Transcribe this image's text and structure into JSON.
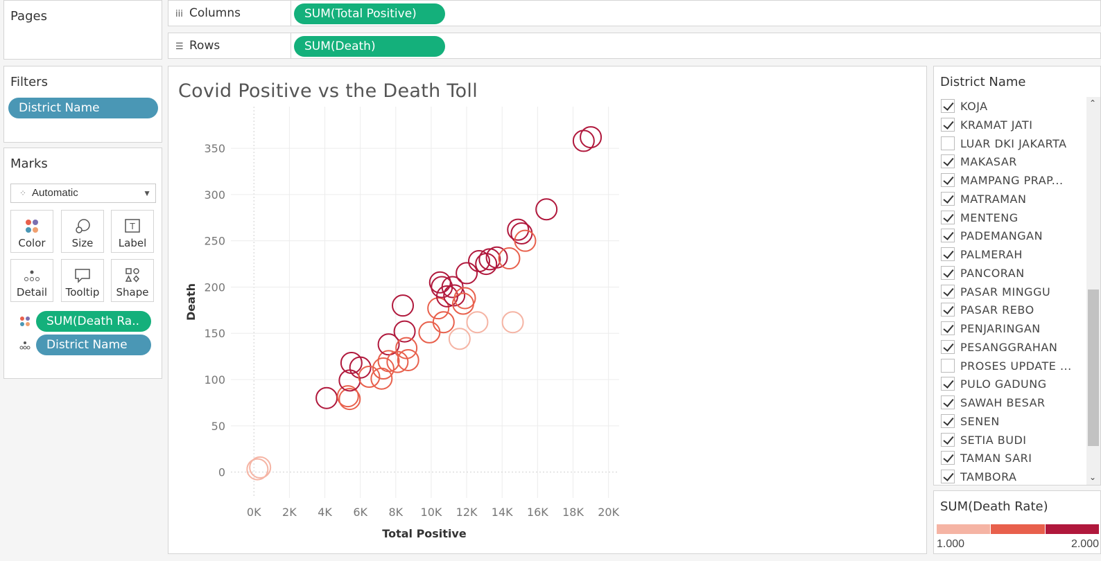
{
  "pages": {
    "title": "Pages"
  },
  "shelves": {
    "columns_label": "Columns",
    "columns_pill": "SUM(Total Positive)",
    "rows_label": "Rows",
    "rows_pill": "SUM(Death)"
  },
  "filters": {
    "title": "Filters",
    "pill": "District Name"
  },
  "marks": {
    "title": "Marks",
    "type": "Automatic",
    "buttons": [
      "Color",
      "Size",
      "Label",
      "Detail",
      "Tooltip",
      "Shape"
    ],
    "pills": [
      "SUM(Death Ra..",
      "District Name"
    ]
  },
  "district_legend": {
    "title": "District Name",
    "items": [
      {
        "label": "KOJA",
        "checked": true
      },
      {
        "label": "KRAMAT JATI",
        "checked": true
      },
      {
        "label": "LUAR DKI JAKARTA",
        "checked": false
      },
      {
        "label": "MAKASAR",
        "checked": true
      },
      {
        "label": "MAMPANG PRAP...",
        "checked": true
      },
      {
        "label": "MATRAMAN",
        "checked": true
      },
      {
        "label": "MENTENG",
        "checked": true
      },
      {
        "label": "PADEMANGAN",
        "checked": true
      },
      {
        "label": "PALMERAH",
        "checked": true
      },
      {
        "label": "PANCORAN",
        "checked": true
      },
      {
        "label": "PASAR MINGGU",
        "checked": true
      },
      {
        "label": "PASAR REBO",
        "checked": true
      },
      {
        "label": "PENJARINGAN",
        "checked": true
      },
      {
        "label": "PESANGGRAHAN",
        "checked": true
      },
      {
        "label": "PROSES UPDATE ...",
        "checked": false
      },
      {
        "label": "PULO GADUNG",
        "checked": true
      },
      {
        "label": "SAWAH BESAR",
        "checked": true
      },
      {
        "label": "SENEN",
        "checked": true
      },
      {
        "label": "SETIA BUDI",
        "checked": true
      },
      {
        "label": "TAMAN SARI",
        "checked": true
      },
      {
        "label": "TAMBORA",
        "checked": true
      }
    ]
  },
  "color_legend": {
    "title": "SUM(Death Rate)",
    "min_label": "1.000",
    "max_label": "2.000",
    "colors": [
      "#f5b4a4",
      "#e8604c",
      "#b0183c"
    ]
  },
  "chart_data": {
    "type": "scatter",
    "title": "Covid Positive vs the Death Toll",
    "xlabel": "Total Positive",
    "ylabel": "Death",
    "xlim": [
      -1300,
      20600
    ],
    "ylim": [
      -28,
      395
    ],
    "xticks": [
      0,
      2000,
      4000,
      6000,
      8000,
      10000,
      12000,
      14000,
      16000,
      18000,
      20000
    ],
    "xtick_labels": [
      "0K",
      "2K",
      "4K",
      "6K",
      "8K",
      "10K",
      "12K",
      "14K",
      "16K",
      "18K",
      "20K"
    ],
    "yticks": [
      0,
      50,
      100,
      150,
      200,
      250,
      300,
      350
    ],
    "ytick_labels": [
      "0",
      "50",
      "100",
      "150",
      "200",
      "250",
      "300",
      "350"
    ],
    "color_scale": {
      "min": 1.0,
      "max": 2.0,
      "colors": [
        "#f5b4a4",
        "#e8604c",
        "#b0183c"
      ]
    },
    "points": [
      {
        "x": 200,
        "y": 3,
        "rate": 1.1
      },
      {
        "x": 350,
        "y": 5,
        "rate": 1.15
      },
      {
        "x": 4100,
        "y": 80,
        "rate": 1.95
      },
      {
        "x": 5400,
        "y": 79,
        "rate": 1.5
      },
      {
        "x": 5300,
        "y": 82,
        "rate": 1.55
      },
      {
        "x": 5400,
        "y": 99,
        "rate": 1.85
      },
      {
        "x": 5500,
        "y": 118,
        "rate": 1.95
      },
      {
        "x": 6000,
        "y": 113,
        "rate": 1.9
      },
      {
        "x": 6500,
        "y": 103,
        "rate": 1.6
      },
      {
        "x": 7200,
        "y": 101,
        "rate": 1.55
      },
      {
        "x": 7300,
        "y": 112,
        "rate": 1.5
      },
      {
        "x": 7600,
        "y": 120,
        "rate": 1.6
      },
      {
        "x": 7600,
        "y": 138,
        "rate": 1.9
      },
      {
        "x": 8100,
        "y": 119,
        "rate": 1.55
      },
      {
        "x": 8400,
        "y": 180,
        "rate": 1.95
      },
      {
        "x": 8500,
        "y": 152,
        "rate": 1.9
      },
      {
        "x": 8600,
        "y": 134,
        "rate": 1.55
      },
      {
        "x": 8700,
        "y": 121,
        "rate": 1.5
      },
      {
        "x": 9900,
        "y": 151,
        "rate": 1.5
      },
      {
        "x": 10400,
        "y": 177,
        "rate": 1.5
      },
      {
        "x": 10500,
        "y": 205,
        "rate": 1.95
      },
      {
        "x": 10600,
        "y": 200,
        "rate": 1.9
      },
      {
        "x": 10700,
        "y": 162,
        "rate": 1.4
      },
      {
        "x": 10900,
        "y": 190,
        "rate": 1.95
      },
      {
        "x": 11200,
        "y": 200,
        "rate": 1.9
      },
      {
        "x": 11300,
        "y": 191,
        "rate": 1.85
      },
      {
        "x": 11600,
        "y": 144,
        "rate": 1.2
      },
      {
        "x": 11800,
        "y": 182,
        "rate": 1.55
      },
      {
        "x": 11900,
        "y": 188,
        "rate": 1.5
      },
      {
        "x": 12000,
        "y": 215,
        "rate": 1.95
      },
      {
        "x": 12600,
        "y": 162,
        "rate": 1.15
      },
      {
        "x": 12700,
        "y": 228,
        "rate": 1.9
      },
      {
        "x": 13100,
        "y": 225,
        "rate": 1.9
      },
      {
        "x": 13300,
        "y": 230,
        "rate": 1.9
      },
      {
        "x": 13700,
        "y": 232,
        "rate": 1.85
      },
      {
        "x": 14400,
        "y": 231,
        "rate": 1.5
      },
      {
        "x": 14600,
        "y": 162,
        "rate": 1.2
      },
      {
        "x": 14900,
        "y": 262,
        "rate": 1.95
      },
      {
        "x": 15100,
        "y": 258,
        "rate": 1.9
      },
      {
        "x": 15300,
        "y": 250,
        "rate": 1.5
      },
      {
        "x": 16500,
        "y": 284,
        "rate": 1.95
      },
      {
        "x": 18600,
        "y": 358,
        "rate": 1.95
      },
      {
        "x": 19000,
        "y": 362,
        "rate": 1.95
      }
    ]
  }
}
